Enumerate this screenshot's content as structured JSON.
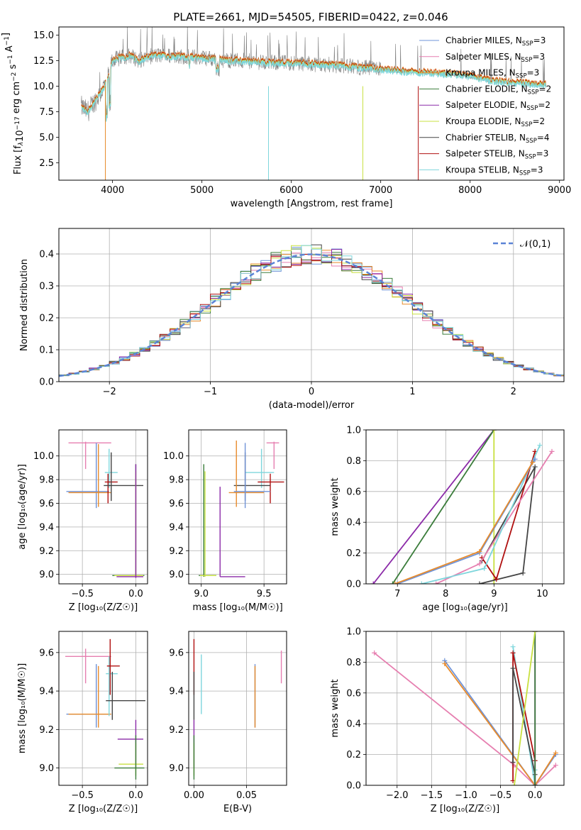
{
  "title": "PLATE=2661, MJD=54505, FIBERID=0422, z=0.046",
  "series": [
    {
      "key": "chabrier_miles",
      "label": "Chabrier MILES, N",
      "sub": "SSP",
      "eq": "=3",
      "color": "#6f93d8"
    },
    {
      "key": "salpeter_miles",
      "label": "Salpeter MILES, N",
      "sub": "SSP",
      "eq": "=3",
      "color": "#e67fb0"
    },
    {
      "key": "kroupa_miles",
      "label": "Kroupa MILES, N",
      "sub": "SSP",
      "eq": "=3",
      "color": "#e88b2b"
    },
    {
      "key": "chabrier_elodie",
      "label": "Chabrier ELODIE, N",
      "sub": "SSP",
      "eq": "=2",
      "color": "#3b7d3b"
    },
    {
      "key": "salpeter_elodie",
      "label": "Salpeter ELODIE, N",
      "sub": "SSP",
      "eq": "=2",
      "color": "#8b2aa8"
    },
    {
      "key": "kroupa_elodie",
      "label": "Kroupa ELODIE, N",
      "sub": "SSP",
      "eq": "=2",
      "color": "#c8e040"
    },
    {
      "key": "chabrier_stelib",
      "label": "Chabrier STELIB, N",
      "sub": "SSP",
      "eq": "=4",
      "color": "#444444"
    },
    {
      "key": "salpeter_stelib",
      "label": "Salpeter STELIB, N",
      "sub": "SSP",
      "eq": "=3",
      "color": "#b01010"
    },
    {
      "key": "kroupa_stelib",
      "label": "Kroupa STELIB, N",
      "sub": "SSP",
      "eq": "=3",
      "color": "#7ed6dc"
    }
  ],
  "chart_data": [
    {
      "id": "spectrum",
      "type": "line",
      "title": "PLATE=2661, MJD=54505, FIBERID=0422, z=0.046",
      "xlabel": "wavelength [Angstrom, rest frame]",
      "ylabel_parts": [
        "Flux [f",
        "λ",
        "10",
        "−17",
        " erg cm",
        "−2",
        " s",
        "−1",
        " A",
        "−1",
        "]"
      ],
      "xlim": [
        3400,
        9050
      ],
      "ylim": [
        0.8,
        15.8
      ],
      "xticks": [
        4000,
        5000,
        6000,
        7000,
        8000,
        9000
      ],
      "yticks": [
        2.5,
        5.0,
        7.5,
        10.0,
        12.5,
        15.0
      ],
      "ytick_labels": [
        "2.5",
        "5.0",
        "7.5",
        "10.0",
        "12.5",
        "15.0"
      ],
      "data_color": "#808080",
      "continuum_x": [
        3650,
        3720,
        3800,
        3880,
        3950,
        4000,
        4100,
        4200,
        4300,
        4400,
        4500,
        4600,
        4800,
        5000,
        5200,
        5400,
        5600,
        5800,
        6000,
        6200,
        6400,
        6600,
        6800,
        7000,
        7200,
        7400,
        7600,
        7800,
        8000,
        8200,
        8400,
        8600,
        8800
      ],
      "continuum_y": [
        8.0,
        7.5,
        8.5,
        9.5,
        10.8,
        12.6,
        12.8,
        13.0,
        12.5,
        12.9,
        13.0,
        13.0,
        12.9,
        12.8,
        12.6,
        12.5,
        12.4,
        12.3,
        12.3,
        12.2,
        12.1,
        12.0,
        11.8,
        11.7,
        11.5,
        11.4,
        11.3,
        11.2,
        11.0,
        10.6,
        10.4,
        10.3,
        10.2
      ],
      "grid": false,
      "legend": "upper right"
    },
    {
      "id": "residuals",
      "type": "line",
      "xlabel": "(data-model)/error",
      "ylabel": "Normed distribution",
      "xlim": [
        -2.5,
        2.5
      ],
      "ylim": [
        0,
        0.48
      ],
      "xticks": [
        -2,
        -1,
        0,
        1,
        2
      ],
      "xtick_labels": [
        "−2",
        "−1",
        "0",
        "1",
        "2"
      ],
      "yticks": [
        0.0,
        0.1,
        0.2,
        0.3,
        0.4
      ],
      "ytick_labels": [
        "0.0",
        "0.1",
        "0.2",
        "0.3",
        "0.4"
      ],
      "bin_width": 0.1,
      "reference": {
        "label": "𝒩(0,1)",
        "color": "#5b83d6",
        "mu": 0,
        "sigma": 1
      },
      "grid": true,
      "legend": "upper right"
    },
    {
      "id": "z_age",
      "type": "scatter",
      "xlabel": "Z [log₁₀(Z/Z☉)]",
      "ylabel": "age  [log₁₀(age/yr)]",
      "xlim": [
        -0.72,
        0.11
      ],
      "ylim": [
        8.92,
        10.22
      ],
      "xticks": [
        -0.5,
        0.0
      ],
      "xtick_labels": [
        "−0.5",
        "0.0"
      ],
      "yticks": [
        9.0,
        9.2,
        9.4,
        9.6,
        9.8,
        10.0
      ],
      "ytick_labels": [
        "9.0",
        "9.2",
        "9.4",
        "9.6",
        "9.8",
        "10.0"
      ],
      "grid": true,
      "points": [
        {
          "s": 1,
          "x": -0.47,
          "xe": [
            -0.63,
            -0.23
          ],
          "y": 10.11,
          "ye": [
            9.89,
            10.12
          ]
        },
        {
          "s": 0,
          "x": -0.37,
          "xe": [
            -0.65,
            -0.25
          ],
          "y": 9.7,
          "ye": [
            9.56,
            10.11
          ]
        },
        {
          "s": 2,
          "x": -0.35,
          "xe": [
            -0.63,
            -0.23
          ],
          "y": 9.69,
          "ye": [
            9.57,
            10.1
          ]
        },
        {
          "s": 8,
          "x": -0.25,
          "xe": [
            -0.29,
            -0.17
          ],
          "y": 9.86,
          "ye": [
            9.73,
            10.06
          ]
        },
        {
          "s": 7,
          "x": -0.26,
          "xe": [
            -0.29,
            -0.17
          ],
          "y": 9.78,
          "ye": [
            9.6,
            9.85
          ]
        },
        {
          "s": 6,
          "x": -0.23,
          "xe": [
            -0.3,
            0.07
          ],
          "y": 9.75,
          "ye": [
            9.62,
            10.03
          ]
        },
        {
          "s": 3,
          "x": 0.0,
          "xe": [
            -0.22,
            0.08
          ],
          "y": 8.99,
          "ye": [
            8.98,
            9.93
          ]
        },
        {
          "s": 5,
          "x": 0.0,
          "xe": [
            -0.2,
            0.07
          ],
          "y": 8.99,
          "ye": [
            8.98,
            9.87
          ]
        },
        {
          "s": 4,
          "x": 0.0,
          "xe": [
            -0.18,
            0.07
          ],
          "y": 8.98,
          "ye": [
            8.97,
            9.93
          ]
        }
      ]
    },
    {
      "id": "mass_age",
      "type": "scatter",
      "xlabel": "mass [log₁₀(M/M☉)]",
      "xlim": [
        8.9,
        9.68
      ],
      "ylim": [
        8.92,
        10.22
      ],
      "xticks": [
        9.0,
        9.5
      ],
      "xtick_labels": [
        "9.0",
        "9.5"
      ],
      "yticks": [
        9.0,
        9.2,
        9.4,
        9.6,
        9.8,
        10.0
      ],
      "ytick_labels": [
        "9.0",
        "9.2",
        "9.4",
        "9.6",
        "9.8",
        "10.0"
      ],
      "grid": true,
      "points": [
        {
          "s": 1,
          "x": 9.58,
          "xe": [
            9.52,
            9.62
          ],
          "y": 10.11,
          "ye": [
            9.89,
            10.12
          ]
        },
        {
          "s": 8,
          "x": 9.48,
          "xe": [
            9.35,
            9.58
          ],
          "y": 9.86,
          "ye": [
            9.73,
            10.06
          ]
        },
        {
          "s": 7,
          "x": 9.55,
          "xe": [
            9.45,
            9.66
          ],
          "y": 9.78,
          "ye": [
            9.6,
            9.85
          ]
        },
        {
          "s": 6,
          "x": 9.35,
          "xe": [
            9.26,
            9.55
          ],
          "y": 9.75,
          "ye": [
            9.62,
            10.03
          ]
        },
        {
          "s": 2,
          "x": 9.28,
          "xe": [
            9.22,
            9.5
          ],
          "y": 9.69,
          "ye": [
            9.57,
            10.13
          ]
        },
        {
          "s": 0,
          "x": 9.35,
          "xe": [
            9.26,
            9.55
          ],
          "y": 9.7,
          "ye": [
            9.56,
            10.11
          ]
        },
        {
          "s": 4,
          "x": 9.15,
          "xe": [
            9.15,
            9.35
          ],
          "y": 8.98,
          "ye": [
            8.98,
            9.74
          ]
        },
        {
          "s": 3,
          "x": 9.02,
          "xe": [
            8.98,
            9.12
          ],
          "y": 8.99,
          "ye": [
            8.98,
            9.93
          ]
        },
        {
          "s": 5,
          "x": 9.03,
          "xe": [
            8.99,
            9.12
          ],
          "y": 8.99,
          "ye": [
            8.98,
            9.87
          ]
        }
      ]
    },
    {
      "id": "age_weight",
      "type": "line",
      "xlabel": "age  [log₁₀(age/yr)]",
      "ylabel": "mass weight",
      "xlim": [
        6.35,
        10.45
      ],
      "ylim": [
        0,
        1.0
      ],
      "xticks": [
        7,
        8,
        9,
        10
      ],
      "xtick_labels": [
        "7",
        "8",
        "9",
        "10"
      ],
      "yticks": [
        0.0,
        0.2,
        0.4,
        0.6,
        0.8,
        1.0
      ],
      "ytick_labels": [
        "0.0",
        "0.2",
        "0.4",
        "0.6",
        "0.8",
        "1.0"
      ],
      "grid": true,
      "lines": [
        {
          "s": 4,
          "x": [
            6.5,
            9.0
          ],
          "y": [
            0.0,
            1.0
          ]
        },
        {
          "s": 3,
          "x": [
            6.9,
            9.0
          ],
          "y": [
            0.0,
            1.0
          ]
        },
        {
          "s": 5,
          "x": [
            9.0,
            9.0
          ],
          "y": [
            0.0,
            1.0
          ]
        },
        {
          "s": 6,
          "x": [
            8.7,
            9.6,
            9.85,
            8.75
          ],
          "y": [
            0.0,
            0.07,
            0.76,
            0.15
          ]
        },
        {
          "s": 7,
          "x": [
            8.75,
            9.05,
            9.85
          ],
          "y": [
            0.17,
            0.03,
            0.86
          ]
        },
        {
          "s": 1,
          "x": [
            7.8,
            8.7,
            10.2
          ],
          "y": [
            0.0,
            0.13,
            0.86
          ]
        },
        {
          "s": 8,
          "x": [
            7.5,
            8.8,
            9.95
          ],
          "y": [
            0.0,
            0.1,
            0.9
          ]
        },
        {
          "s": 0,
          "x": [
            7.0,
            8.7,
            9.85
          ],
          "y": [
            0.0,
            0.2,
            0.81
          ]
        },
        {
          "s": 2,
          "x": [
            6.95,
            8.7,
            9.8
          ],
          "y": [
            0.0,
            0.21,
            0.79
          ]
        }
      ]
    },
    {
      "id": "z_mass",
      "type": "scatter",
      "xlabel": "Z [log₁₀(Z/Z☉)]",
      "ylabel": "mass [log₁₀(M/M☉)]",
      "xlim": [
        -0.72,
        0.11
      ],
      "ylim": [
        8.91,
        9.71
      ],
      "xticks": [
        -0.5,
        0.0
      ],
      "xtick_labels": [
        "−0.5",
        "0.0"
      ],
      "yticks": [
        9.0,
        9.2,
        9.4,
        9.6
      ],
      "ytick_labels": [
        "9.0",
        "9.2",
        "9.4",
        "9.6"
      ],
      "grid": true,
      "points": [
        {
          "s": 1,
          "x": -0.47,
          "xe": [
            -0.66,
            -0.23
          ],
          "y": 9.58,
          "ye": [
            9.44,
            9.62
          ]
        },
        {
          "s": 0,
          "x": -0.37,
          "xe": [
            -0.65,
            -0.25
          ],
          "y": 9.28,
          "ye": [
            9.21,
            9.54
          ]
        },
        {
          "s": 2,
          "x": -0.35,
          "xe": [
            -0.63,
            -0.23
          ],
          "y": 9.28,
          "ye": [
            9.21,
            9.53
          ]
        },
        {
          "s": 8,
          "x": -0.25,
          "xe": [
            -0.28,
            -0.17
          ],
          "y": 9.49,
          "ye": [
            9.27,
            9.58
          ]
        },
        {
          "s": 7,
          "x": -0.24,
          "xe": [
            -0.27,
            -0.15
          ],
          "y": 9.53,
          "ye": [
            9.38,
            9.67
          ]
        },
        {
          "s": 6,
          "x": -0.22,
          "xe": [
            -0.28,
            0.09
          ],
          "y": 9.35,
          "ye": [
            9.25,
            9.5
          ]
        },
        {
          "s": 4,
          "x": 0.0,
          "xe": [
            -0.17,
            0.07
          ],
          "y": 9.15,
          "ye": [
            9.0,
            9.25
          ]
        },
        {
          "s": 5,
          "x": 0.0,
          "xe": [
            -0.16,
            0.07
          ],
          "y": 9.02,
          "ye": [
            8.96,
            9.13
          ]
        },
        {
          "s": 3,
          "x": 0.0,
          "xe": [
            -0.2,
            0.08
          ],
          "y": 9.0,
          "ye": [
            8.94,
            9.17
          ]
        }
      ]
    },
    {
      "id": "ebv_mass",
      "type": "scatter",
      "xlabel": "E(B-V)",
      "xlim": [
        -0.005,
        0.088
      ],
      "ylim": [
        8.91,
        9.71
      ],
      "xticks": [
        0.0,
        0.05
      ],
      "xtick_labels": [
        "0.00",
        "0.05"
      ],
      "yticks": [
        9.0,
        9.2,
        9.4,
        9.6
      ],
      "ytick_labels": [
        "9.0",
        "9.2",
        "9.4",
        "9.6"
      ],
      "grid": true,
      "points": [
        {
          "s": 1,
          "x": 0.083,
          "y": 9.52,
          "ye": [
            9.44,
            9.61
          ]
        },
        {
          "s": 0,
          "x": 0.058,
          "y": 9.37,
          "ye": [
            9.21,
            9.54
          ]
        },
        {
          "s": 2,
          "x": 0.058,
          "y": 9.36,
          "ye": [
            9.21,
            9.53
          ]
        },
        {
          "s": 8,
          "x": 0.007,
          "y": 9.45,
          "ye": [
            9.28,
            9.59
          ]
        },
        {
          "s": 7,
          "x": 0.0,
          "y": 9.52,
          "ye": [
            9.38,
            9.67
          ]
        },
        {
          "s": 6,
          "x": 0.0,
          "y": 9.37,
          "ye": [
            9.25,
            9.5
          ]
        },
        {
          "s": 4,
          "x": 0.0,
          "y": 9.13,
          "ye": [
            9.0,
            9.25
          ]
        },
        {
          "s": 5,
          "x": 0.0,
          "y": 9.05,
          "ye": [
            8.96,
            9.13
          ]
        },
        {
          "s": 3,
          "x": 0.0,
          "y": 9.05,
          "ye": [
            8.94,
            9.17
          ]
        }
      ]
    },
    {
      "id": "z_weight",
      "type": "line",
      "xlabel": "Z [log₁₀(Z/Z☉)]",
      "ylabel": "mass weight",
      "xlim": [
        -2.45,
        0.42
      ],
      "ylim": [
        0,
        1.0
      ],
      "xticks": [
        -2.0,
        -1.5,
        -1.0,
        -0.5,
        0.0
      ],
      "xtick_labels": [
        "−2.0",
        "−1.5",
        "−1.0",
        "−0.5",
        "0.0"
      ],
      "yticks": [
        0.0,
        0.2,
        0.4,
        0.6,
        0.8,
        1.0
      ],
      "ytick_labels": [
        "0.0",
        "0.2",
        "0.4",
        "0.6",
        "0.8",
        "1.0"
      ],
      "grid": true,
      "lines": [
        {
          "s": 1,
          "x": [
            -2.33,
            -0.3,
            0.0,
            0.3
          ],
          "y": [
            0.86,
            0.13,
            0.0,
            0.13
          ]
        },
        {
          "s": 0,
          "x": [
            -1.31,
            0.0,
            0.3
          ],
          "y": [
            0.81,
            0.0,
            0.2
          ]
        },
        {
          "s": 2,
          "x": [
            -1.31,
            0.0,
            0.3
          ],
          "y": [
            0.79,
            0.0,
            0.21
          ]
        },
        {
          "s": 8,
          "x": [
            -0.32,
            0.0,
            0.0
          ],
          "y": [
            0.9,
            0.0,
            0.1
          ]
        },
        {
          "s": 7,
          "x": [
            -0.32,
            -0.32,
            0.0
          ],
          "y": [
            0.03,
            0.86,
            0.16
          ]
        },
        {
          "s": 6,
          "x": [
            -0.32,
            -0.32,
            0.0,
            0.0
          ],
          "y": [
            0.15,
            0.76,
            0.07,
            0.0
          ]
        },
        {
          "s": 4,
          "x": [
            0.0,
            0.0
          ],
          "y": [
            0.0,
            1.0
          ]
        },
        {
          "s": 3,
          "x": [
            0.0,
            0.0
          ],
          "y": [
            0.0,
            1.0
          ]
        },
        {
          "s": 5,
          "x": [
            -0.3,
            0.0
          ],
          "y": [
            0.0,
            1.0
          ]
        }
      ]
    }
  ]
}
